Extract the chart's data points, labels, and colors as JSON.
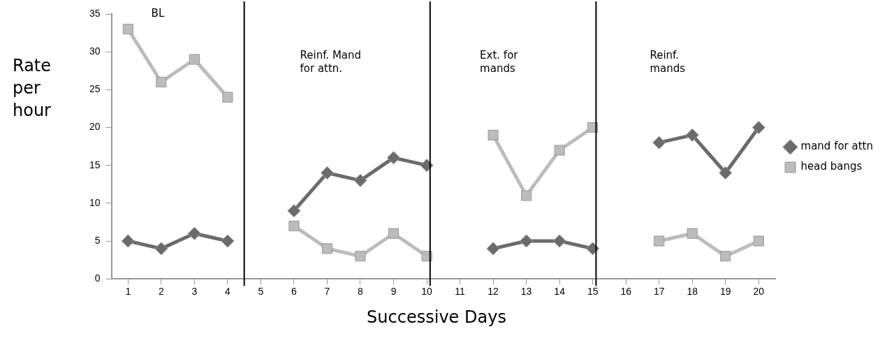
{
  "chart_data": {
    "type": "line",
    "xlabel": "Successive Days",
    "ylabel": "Rate per hour",
    "x": [
      1,
      2,
      3,
      4,
      5,
      6,
      7,
      8,
      9,
      10,
      11,
      12,
      13,
      14,
      15,
      16,
      17,
      18,
      19,
      20
    ],
    "xlim": [
      0.5,
      20.5
    ],
    "xticks": [
      1,
      2,
      3,
      4,
      5,
      6,
      7,
      8,
      9,
      10,
      11,
      12,
      13,
      14,
      15,
      16,
      17,
      18,
      19,
      20
    ],
    "ylim": [
      0,
      35
    ],
    "yticks": [
      0,
      5,
      10,
      15,
      20,
      25,
      30,
      35
    ],
    "series": [
      {
        "name": "mand for attn",
        "color": "#6b6b6b",
        "marker": "diamond",
        "values": [
          5,
          4,
          6,
          5,
          null,
          9,
          14,
          13,
          16,
          15,
          null,
          4,
          5,
          5,
          4,
          null,
          18,
          19,
          14,
          20
        ]
      },
      {
        "name": "head bangs",
        "color": "#bcbcbc",
        "marker": "square",
        "values": [
          33,
          26,
          29,
          24,
          null,
          7,
          4,
          3,
          6,
          3,
          null,
          19,
          11,
          17,
          20,
          null,
          5,
          6,
          3,
          5
        ]
      }
    ],
    "ref_lines": [
      {
        "axis": "x",
        "value": 4.5,
        "color": "#000000"
      },
      {
        "axis": "x",
        "value": 10.1,
        "color": "#000000"
      },
      {
        "axis": "x",
        "value": 15.1,
        "color": "#000000"
      }
    ],
    "annotations": [
      "BL",
      "Reinf. Mand\nfor attn.",
      "Ext. for\nmands",
      "Reinf.\nmands"
    ],
    "grid": false,
    "legend": "right"
  }
}
